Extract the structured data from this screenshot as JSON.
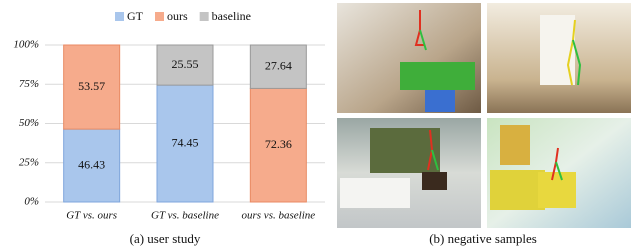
{
  "chart_data": {
    "type": "stacked_bar",
    "categories": [
      "GT vs. ours",
      "GT vs. baseline",
      "ours vs. baseline"
    ],
    "series": [
      {
        "name": "GT",
        "color": "#a9c6ec",
        "values": [
          46.43,
          74.45,
          null
        ]
      },
      {
        "name": "ours",
        "color": "#f6ab8c",
        "values": [
          53.57,
          null,
          72.36
        ]
      },
      {
        "name": "baseline",
        "color": "#c4c4c4",
        "values": [
          null,
          25.55,
          27.64
        ]
      }
    ],
    "ylim": [
      0,
      100
    ],
    "yticks": [
      {
        "value": 0,
        "label": "0%"
      },
      {
        "value": 25,
        "label": "25%"
      },
      {
        "value": 50,
        "label": "50%"
      },
      {
        "value": 75,
        "label": "75%"
      },
      {
        "value": 100,
        "label": "100%"
      }
    ],
    "grid": true,
    "legend": "top",
    "caption": "(a) user study"
  },
  "panel_b": {
    "caption": "(b) negative samples"
  }
}
